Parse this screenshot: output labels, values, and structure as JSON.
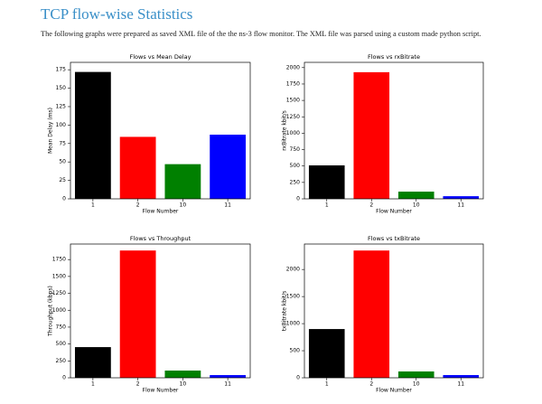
{
  "header": {
    "title": "TCP flow-wise  Statistics",
    "paragraph": "The following graphs were prepared as saved XML file of the the ns-3 flow monitor. The XML file was parsed using a custom made python script."
  },
  "chart_data": [
    {
      "type": "bar",
      "title": "Flows vs Mean Delay",
      "x_label": "Flow Number",
      "y_label": "Mean Delay (ms)",
      "categories": [
        "1",
        "2",
        "10",
        "11"
      ],
      "values": [
        172,
        84,
        47,
        87
      ],
      "colors": [
        "#000000",
        "#ff0000",
        "#008000",
        "#0000ff"
      ],
      "ylim": [
        0,
        185
      ],
      "yticks": [
        0,
        25,
        50,
        75,
        100,
        125,
        150,
        175
      ]
    },
    {
      "type": "bar",
      "title": "Flows vs rxBitrate",
      "x_label": "Flow Number",
      "y_label": "rxBitrate kbit/s",
      "categories": [
        "1",
        "2",
        "10",
        "11"
      ],
      "values": [
        510,
        1930,
        110,
        40
      ],
      "colors": [
        "#000000",
        "#ff0000",
        "#008000",
        "#0000ff"
      ],
      "ylim": [
        0,
        2080
      ],
      "yticks": [
        0,
        250,
        500,
        750,
        1000,
        1250,
        1500,
        1750,
        2000
      ]
    },
    {
      "type": "bar",
      "title": "Flows vs Throughput",
      "x_label": "Flow Number",
      "y_label": "Throughput (kbps)",
      "categories": [
        "1",
        "2",
        "10",
        "11"
      ],
      "values": [
        454,
        1884,
        107,
        40
      ],
      "colors": [
        "#000000",
        "#ff0000",
        "#008000",
        "#0000ff"
      ],
      "ylim": [
        0,
        1980
      ],
      "yticks": [
        0,
        250,
        500,
        750,
        1000,
        1250,
        1500,
        1750
      ]
    },
    {
      "type": "bar",
      "title": "Flows vs txBitrate",
      "x_label": "Flow Number",
      "y_label": "txBitrate kbit/s",
      "categories": [
        "1",
        "2",
        "10",
        "11"
      ],
      "values": [
        900,
        2350,
        117,
        50
      ],
      "colors": [
        "#000000",
        "#ff0000",
        "#008000",
        "#0000ff"
      ],
      "ylim": [
        0,
        2470
      ],
      "yticks": [
        0,
        500,
        1000,
        1500,
        2000
      ]
    }
  ]
}
